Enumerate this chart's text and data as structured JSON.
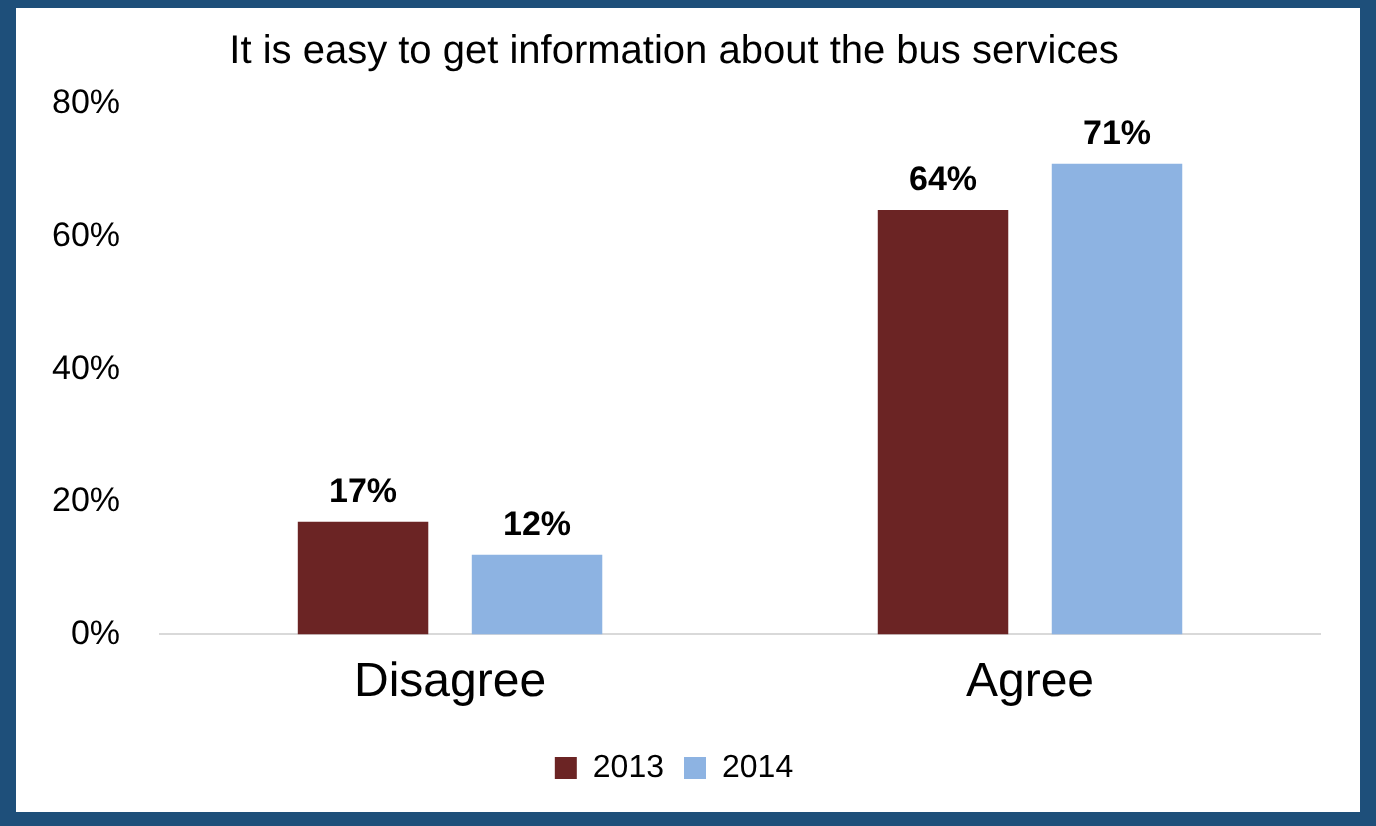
{
  "chart_data": {
    "type": "bar",
    "title": "It is easy to get information about the bus services",
    "categories": [
      "Disagree",
      "Agree"
    ],
    "series": [
      {
        "name": "2013",
        "color": "#6b2424",
        "values": [
          17,
          64
        ],
        "value_labels": [
          "17%",
          "64%"
        ]
      },
      {
        "name": "2014",
        "color": "#8db3e2",
        "values": [
          12,
          71
        ],
        "value_labels": [
          "12%",
          "71%"
        ]
      }
    ],
    "ylim": [
      0,
      80
    ],
    "yticks": [
      {
        "value": 0,
        "label": "0%"
      },
      {
        "value": 20,
        "label": "20%"
      },
      {
        "value": 40,
        "label": "40%"
      },
      {
        "value": 60,
        "label": "60%"
      },
      {
        "value": 80,
        "label": "80%"
      }
    ],
    "grid": false,
    "legend": "bottom"
  }
}
